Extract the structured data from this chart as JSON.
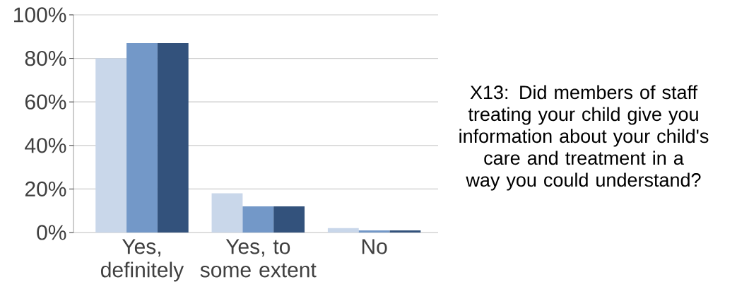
{
  "chart_data": {
    "type": "bar",
    "title": "X13: Did members of staff treating your child give you information about your child's care and treatment in a way you could understand?",
    "categories": [
      "Yes, definitely",
      "Yes, to some extent",
      "No"
    ],
    "series": [
      {
        "color": "#c9d7ea",
        "values": [
          80,
          18,
          2
        ]
      },
      {
        "color": "#7398c8",
        "values": [
          87,
          12,
          1
        ]
      },
      {
        "color": "#33527c",
        "values": [
          87,
          12,
          1
        ]
      }
    ],
    "ylim": [
      0,
      100
    ],
    "yticks": [
      {
        "value": 0,
        "label": "0%"
      },
      {
        "value": 20,
        "label": "20%"
      },
      {
        "value": 40,
        "label": "40%"
      },
      {
        "value": 60,
        "label": "60%"
      },
      {
        "value": 80,
        "label": "80%"
      },
      {
        "value": 100,
        "label": "100%"
      }
    ],
    "grid": "y"
  }
}
